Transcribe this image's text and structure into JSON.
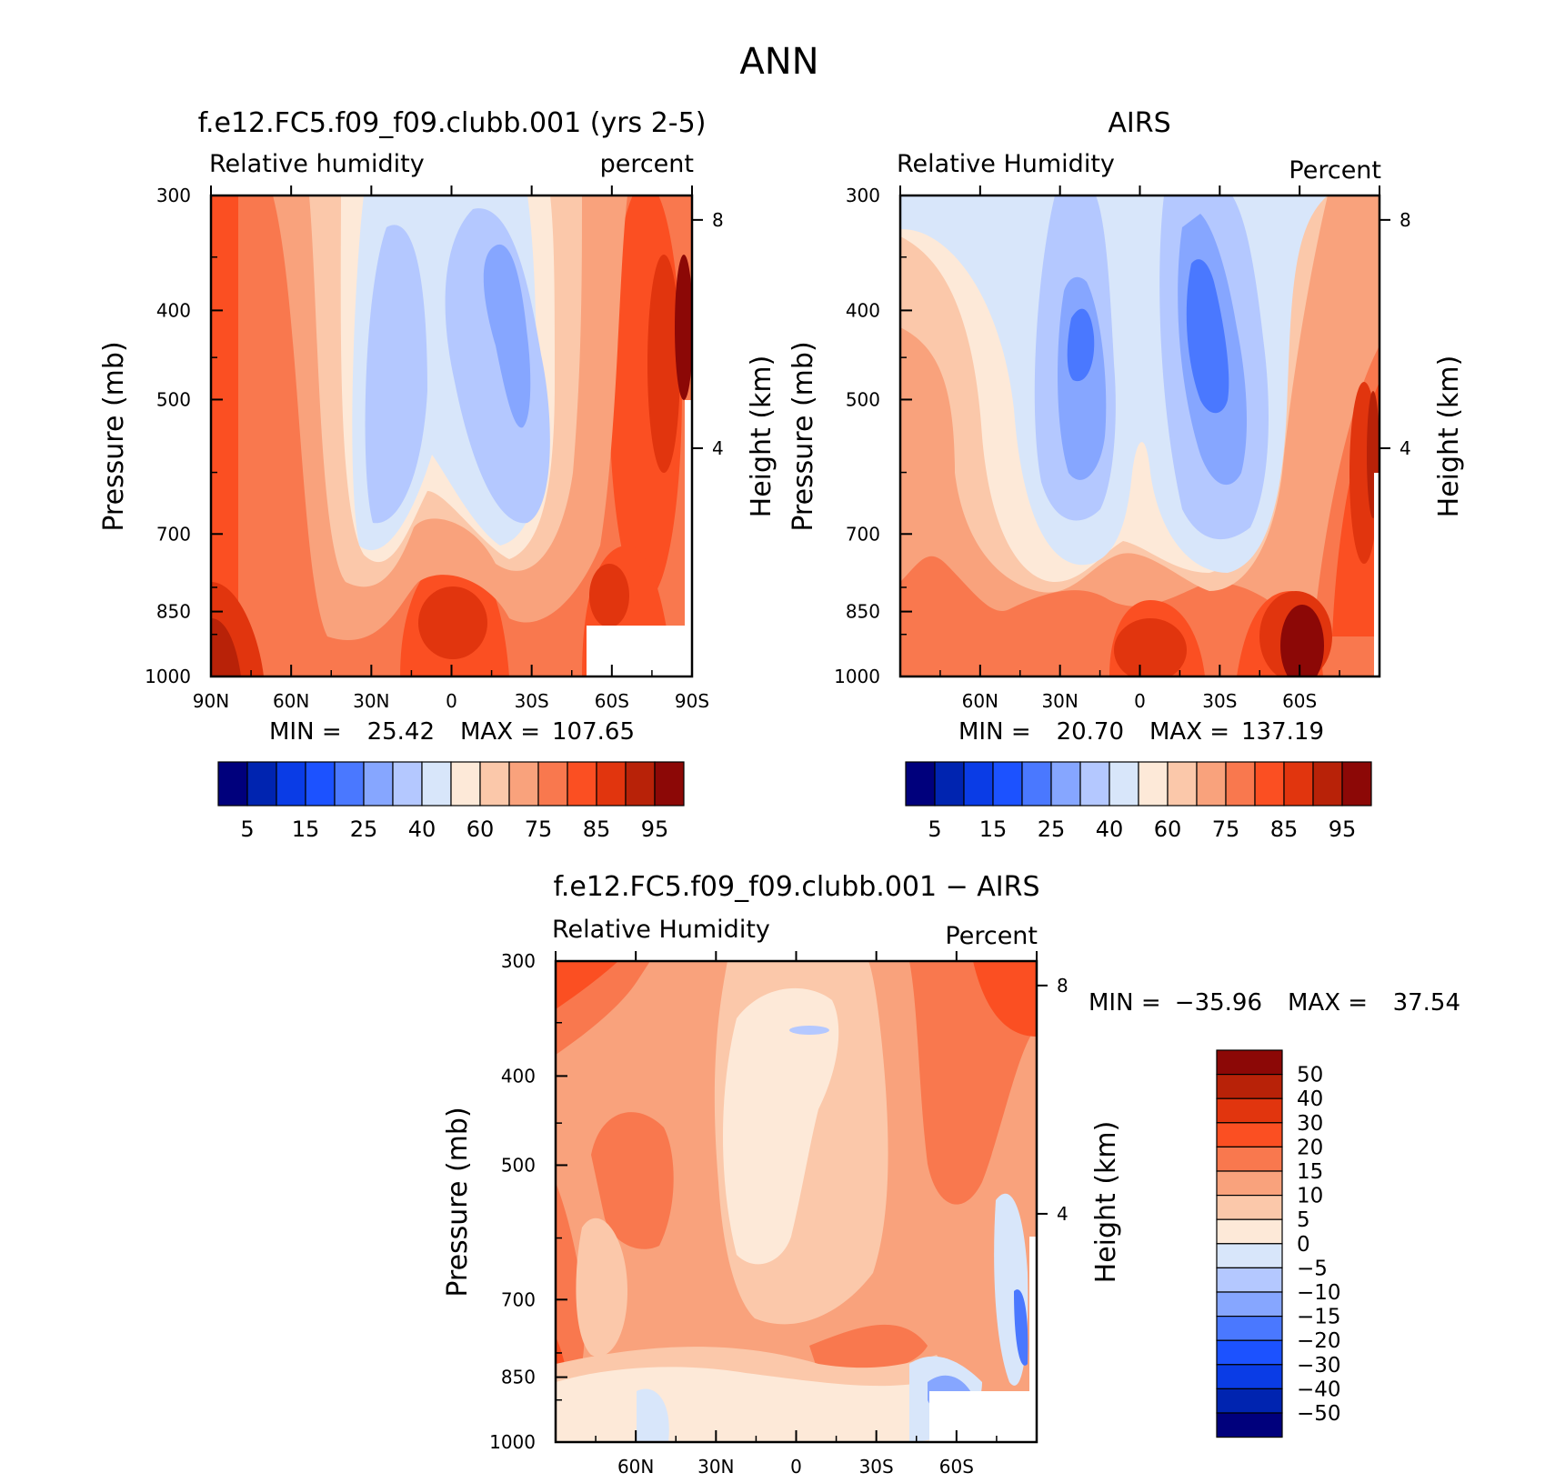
{
  "figure": {
    "title": "ANN"
  },
  "chart_data": [
    {
      "type": "heatmap",
      "title": "f.e12.FC5.f09_f09.clubb.001 (yrs 2-5)",
      "variable": "Relative humidity",
      "units": "percent",
      "ylabel": "Pressure (mb)",
      "ylabel_right": "Height (km)",
      "y_ticks": [
        "300",
        "400",
        "500",
        "700",
        "850",
        "1000"
      ],
      "y_tick_values": [
        300,
        400,
        500,
        700,
        850,
        1000
      ],
      "y_right_ticks": [
        "8",
        "4"
      ],
      "y_right_tick_values": [
        8,
        4
      ],
      "x_ticks": [
        "90N",
        "60N",
        "30N",
        "0",
        "30S",
        "60S",
        "90S"
      ],
      "x_tick_values": [
        90,
        60,
        30,
        0,
        -30,
        -60,
        -90
      ],
      "x_range": [
        90,
        -90
      ],
      "y_range": [
        300,
        1000
      ],
      "min_label": "MIN =",
      "min_value": "25.42",
      "max_label": "MAX =",
      "max_value": "107.65",
      "colorbar_levels": [
        "5",
        "15",
        "25",
        "40",
        "60",
        "75",
        "85",
        "95"
      ]
    },
    {
      "type": "heatmap",
      "title": "AIRS",
      "variable": "Relative Humidity",
      "units": "Percent",
      "ylabel": "Pressure (mb)",
      "ylabel_right": "Height (km)",
      "y_ticks": [
        "300",
        "400",
        "500",
        "700",
        "850",
        "1000"
      ],
      "y_tick_values": [
        300,
        400,
        500,
        700,
        850,
        1000
      ],
      "y_right_ticks": [
        "8",
        "4"
      ],
      "y_right_tick_values": [
        8,
        4
      ],
      "x_ticks": [
        "60N",
        "30N",
        "0",
        "30S",
        "60S"
      ],
      "x_tick_values": [
        60,
        30,
        0,
        -30,
        -60
      ],
      "x_range": [
        90,
        -90
      ],
      "y_range": [
        300,
        1000
      ],
      "min_label": "MIN =",
      "min_value": "20.70",
      "max_label": "MAX =",
      "max_value": "137.19",
      "colorbar_levels": [
        "5",
        "15",
        "25",
        "40",
        "60",
        "75",
        "85",
        "95"
      ]
    },
    {
      "type": "heatmap",
      "title": "f.e12.FC5.f09_f09.clubb.001 − AIRS",
      "variable": "Relative Humidity",
      "units": "Percent",
      "ylabel": "Pressure (mb)",
      "ylabel_right": "Height (km)",
      "y_ticks": [
        "300",
        "400",
        "500",
        "700",
        "850",
        "1000"
      ],
      "y_tick_values": [
        300,
        400,
        500,
        700,
        850,
        1000
      ],
      "y_right_ticks": [
        "8",
        "4"
      ],
      "y_right_tick_values": [
        8,
        4
      ],
      "x_ticks": [
        "60N",
        "30N",
        "0",
        "30S",
        "60S"
      ],
      "x_tick_values": [
        60,
        30,
        0,
        -30,
        -60
      ],
      "x_range": [
        90,
        -90
      ],
      "y_range": [
        300,
        1000
      ],
      "min_label": "MIN =",
      "min_value": "−35.96",
      "max_label": "MAX =",
      "max_value": "37.54",
      "colorbar_levels": [
        "50",
        "40",
        "30",
        "20",
        "15",
        "10",
        "5",
        "0",
        "−5",
        "−10",
        "−15",
        "−20",
        "−30",
        "−40",
        "−50"
      ]
    }
  ],
  "colors": {
    "abs_ramp": [
      "#00007c",
      "#0024b0",
      "#0a3ce6",
      "#1c52ff",
      "#4a78ff",
      "#86a6ff",
      "#b4c8ff",
      "#d8e6fa",
      "#fde9d8",
      "#fbc8aa",
      "#f9a27c",
      "#f9784e",
      "#fb4f22",
      "#e1350e",
      "#b82208",
      "#8c0806"
    ],
    "diff_ramp": [
      "#8c0806",
      "#b82208",
      "#e1350e",
      "#fb4f22",
      "#f9784e",
      "#f9a27c",
      "#fbc8aa",
      "#fde9d8",
      "#d8e6fa",
      "#b4c8ff",
      "#86a6ff",
      "#4a78ff",
      "#1c52ff",
      "#0a3ce6",
      "#0024b0",
      "#00007c"
    ]
  }
}
